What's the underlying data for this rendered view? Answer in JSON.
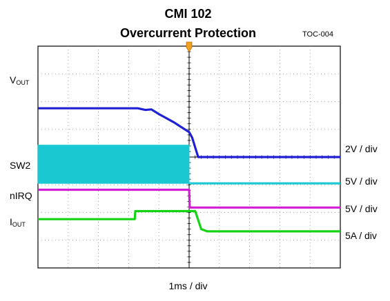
{
  "header": {
    "title": "CMI 102",
    "subtitle": "Overcurrent Protection",
    "code": "TOC-004"
  },
  "chart_data": {
    "type": "line",
    "title": "CMI 102",
    "subtitle": "Overcurrent Protection",
    "xlabel": "1ms / div",
    "x_divisions": 10,
    "y_divisions": 8,
    "trigger_division": 5,
    "series": [
      {
        "label_main": "V",
        "label_sub": "OUT",
        "scale": "2V / div",
        "color": "#1f1fd4",
        "points": [
          [
            0,
            1.76
          ],
          [
            3.3,
            1.76
          ],
          [
            3.55,
            1.7
          ],
          [
            3.75,
            1.72
          ],
          [
            4.0,
            1.55
          ],
          [
            4.5,
            1.25
          ],
          [
            5.0,
            0.9
          ],
          [
            5.1,
            0.7
          ],
          [
            5.3,
            0.0
          ],
          [
            10,
            0.0
          ]
        ]
      },
      {
        "label_main": "SW2",
        "label_sub": "",
        "scale": "5V / div",
        "color": "#19c8d2",
        "switching_band": {
          "from": 0,
          "to": 5.0,
          "low": -0.95,
          "high": 0.43
        },
        "points": [
          [
            5.0,
            -0.95
          ],
          [
            10,
            -0.95
          ]
        ]
      },
      {
        "label_main": "nIRQ",
        "label_sub": "",
        "scale": "5V / div",
        "color": "#d21ed2",
        "points": [
          [
            0,
            -1.18
          ],
          [
            5.0,
            -1.18
          ],
          [
            5.02,
            -1.82
          ],
          [
            10,
            -1.82
          ]
        ]
      },
      {
        "label_main": "I",
        "label_sub": "OUT",
        "scale": "5A / div",
        "color": "#14d214",
        "points": [
          [
            0,
            -2.24
          ],
          [
            3.2,
            -2.24
          ],
          [
            3.22,
            -1.95
          ],
          [
            5.2,
            -1.95
          ],
          [
            5.4,
            -2.6
          ],
          [
            5.6,
            -2.68
          ],
          [
            10,
            -2.68
          ]
        ]
      }
    ]
  }
}
